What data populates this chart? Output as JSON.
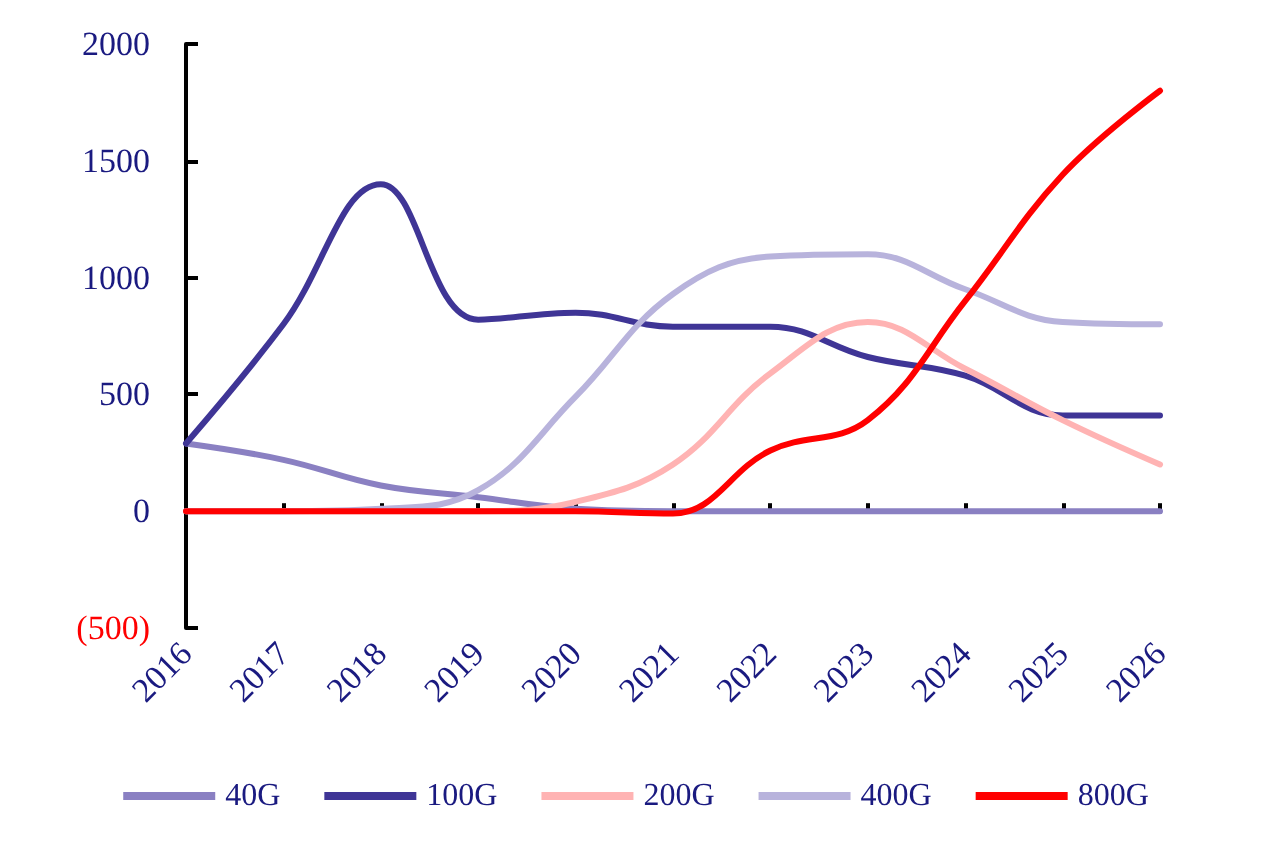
{
  "chart_data": {
    "type": "line",
    "categories": [
      "2016",
      "2017",
      "2018",
      "2019",
      "2020",
      "2021",
      "2022",
      "2023",
      "2024",
      "2025",
      "2026"
    ],
    "series": [
      {
        "name": "40G",
        "color": "#8a80c2",
        "values": [
          290,
          220,
          110,
          60,
          10,
          0,
          0,
          0,
          0,
          0,
          0
        ]
      },
      {
        "name": "100G",
        "color": "#3f3596",
        "values": [
          290,
          800,
          1400,
          820,
          850,
          790,
          790,
          660,
          580,
          410,
          410
        ]
      },
      {
        "name": "200G",
        "color": "#ffb3b3",
        "values": [
          0,
          0,
          0,
          0,
          40,
          200,
          590,
          810,
          610,
          390,
          200
        ]
      },
      {
        "name": "400G",
        "color": "#b8b3dc",
        "values": [
          0,
          0,
          10,
          90,
          490,
          930,
          1090,
          1100,
          950,
          810,
          800
        ]
      },
      {
        "name": "800G",
        "color": "#ff0000",
        "values": [
          0,
          0,
          0,
          0,
          0,
          -10,
          260,
          390,
          900,
          1440,
          1800
        ]
      }
    ],
    "ylim": [
      -500,
      2000
    ],
    "yticks": [
      {
        "value": -500,
        "label": "(500)"
      },
      0,
      500,
      1000,
      1500,
      2000
    ],
    "legend": "bottom",
    "marker": "none",
    "line_style": "solid"
  }
}
